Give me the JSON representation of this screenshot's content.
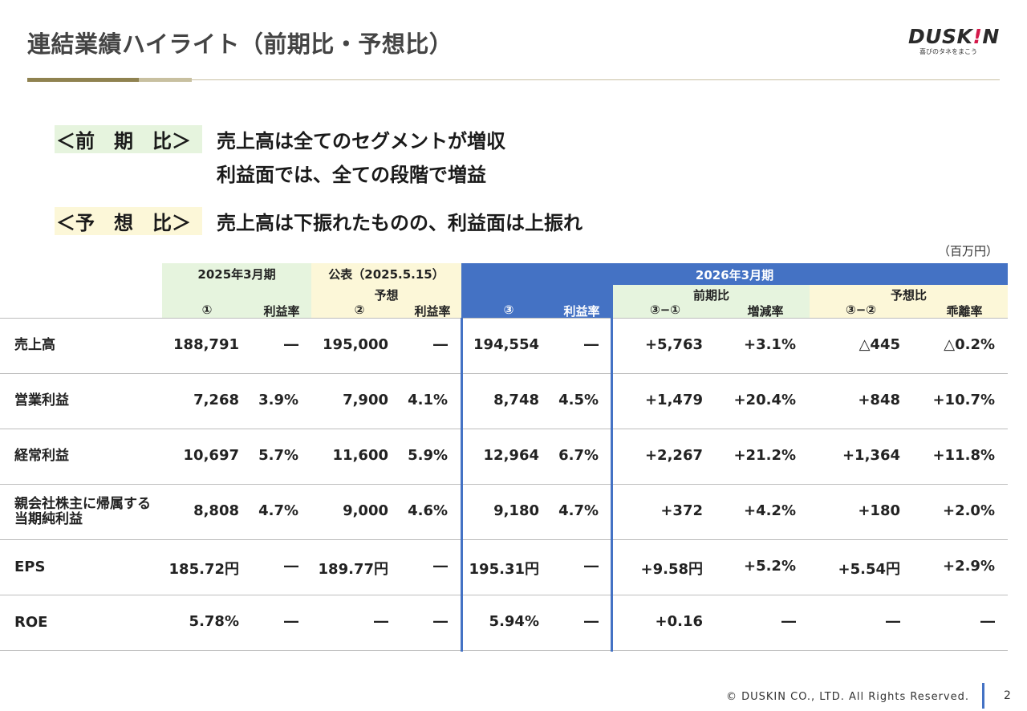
{
  "title": "連結業績ハイライト（前期比・予想比）",
  "logo": {
    "wordmark_before": "DUSK",
    "wordmark_bang": "!",
    "wordmark_after": "N",
    "tagline": "喜びのタネをまこう",
    "accent": "#d4184a"
  },
  "points": [
    {
      "label": "＜前　期　比＞",
      "lines": [
        "売上高は全てのセグメントが増収",
        "利益面では、全ての段階で増益"
      ]
    },
    {
      "label": "＜予　想　比＞",
      "lines": [
        "売上高は下振れたものの、利益面は上振れ"
      ]
    }
  ],
  "unit": "（百万円）",
  "table": {
    "groups": {
      "prev": "2025年3月期",
      "forecast": "公表（2025.5.15）",
      "forecast_sub": "予想",
      "current": "2026年3月期",
      "yoy": "前期比",
      "vs_forecast": "予想比"
    },
    "columns": [
      "①",
      "利益率",
      "②",
      "利益率",
      "③",
      "利益率",
      "③−①",
      "増減率",
      "③−②",
      "乖離率"
    ],
    "rows": [
      {
        "label": "売上高",
        "values": [
          "188,791",
          "―",
          "195,000",
          "―",
          "194,554",
          "―",
          "+5,763",
          "+3.1%",
          "△445",
          "△0.2%"
        ]
      },
      {
        "label": "営業利益",
        "values": [
          "7,268",
          "3.9%",
          "7,900",
          "4.1%",
          "8,748",
          "4.5%",
          "+1,479",
          "+20.4%",
          "+848",
          "+10.7%"
        ]
      },
      {
        "label": "経常利益",
        "values": [
          "10,697",
          "5.7%",
          "11,600",
          "5.9%",
          "12,964",
          "6.7%",
          "+2,267",
          "+21.2%",
          "+1,364",
          "+11.8%"
        ]
      },
      {
        "label": "親会社株主に帰属する当期純利益",
        "label_line1": "親会社株主に帰属する",
        "label_line2": "当期純利益",
        "values": [
          "8,808",
          "4.7%",
          "9,000",
          "4.6%",
          "9,180",
          "4.7%",
          "+372",
          "+4.2%",
          "+180",
          "+2.0%"
        ]
      },
      {
        "label": "EPS",
        "values": [
          "185.72円",
          "―",
          "189.77円",
          "―",
          "195.31円",
          "―",
          "+9.58円",
          "+5.2%",
          "+5.54円",
          "+2.9%"
        ]
      },
      {
        "label": "ROE",
        "values": [
          "5.78%",
          "―",
          "―",
          "―",
          "5.94%",
          "―",
          "+0.16",
          "―",
          "―",
          "―"
        ]
      }
    ],
    "colors": {
      "green_header": "#e6f4de",
      "yellow_header": "#fcf7d8",
      "blue_header": "#4472c4",
      "highlight_border": "#4472c4"
    }
  },
  "footer": {
    "copyright": "© DUSKIN CO., LTD. All Rights Reserved.",
    "page": "2"
  }
}
